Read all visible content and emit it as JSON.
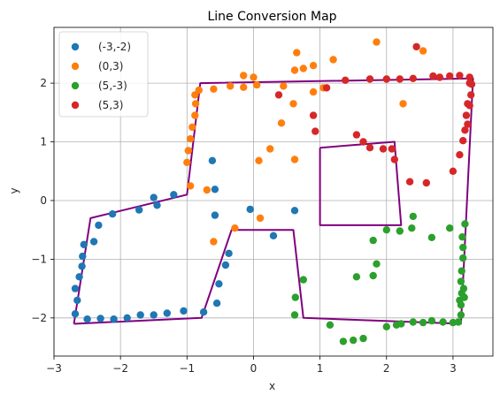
{
  "chart_data": {
    "type": "scatter",
    "title": "Line Conversion Map",
    "xlabel": "x",
    "ylabel": "y",
    "xlim": [
      -3,
      3.6
    ],
    "ylim": [
      -2.65,
      2.95
    ],
    "xticks": [
      -3,
      -2,
      -1,
      0,
      1,
      2,
      3
    ],
    "yticks": [
      -2,
      -1,
      0,
      1,
      2
    ],
    "grid": true,
    "legend_position": "top-left",
    "series": [
      {
        "name": "(-3,-2)",
        "color": "#1f77b4",
        "points": [
          [
            -2.68,
            -1.93
          ],
          [
            -2.5,
            -2.02
          ],
          [
            -2.3,
            -2.01
          ],
          [
            -2.1,
            -2.02
          ],
          [
            -1.9,
            -2.0
          ],
          [
            -1.7,
            -1.95
          ],
          [
            -1.5,
            -1.95
          ],
          [
            -1.3,
            -1.92
          ],
          [
            -1.05,
            -1.88
          ],
          [
            -0.75,
            -1.9
          ],
          [
            -2.65,
            -1.7
          ],
          [
            -2.68,
            -1.5
          ],
          [
            -2.62,
            -1.3
          ],
          [
            -2.58,
            -1.12
          ],
          [
            -2.57,
            -0.95
          ],
          [
            -2.55,
            -0.75
          ],
          [
            -2.4,
            -0.7
          ],
          [
            -2.33,
            -0.42
          ],
          [
            -2.12,
            -0.23
          ],
          [
            -1.72,
            -0.16
          ],
          [
            -1.5,
            0.05
          ],
          [
            -1.45,
            -0.08
          ],
          [
            -1.2,
            0.1
          ],
          [
            -0.62,
            0.68
          ],
          [
            -0.58,
            0.19
          ],
          [
            -0.58,
            -0.25
          ],
          [
            -0.52,
            -1.42
          ],
          [
            -0.55,
            -1.75
          ],
          [
            -0.42,
            -1.1
          ],
          [
            -0.37,
            -0.9
          ],
          [
            -0.05,
            -0.15
          ],
          [
            0.3,
            -0.6
          ],
          [
            0.62,
            -0.17
          ]
        ]
      },
      {
        "name": "(0,3)",
        "color": "#ff7f0e",
        "points": [
          [
            -0.95,
            0.25
          ],
          [
            -0.7,
            0.18
          ],
          [
            -0.6,
            -0.7
          ],
          [
            -0.28,
            -0.47
          ],
          [
            0.1,
            -0.3
          ],
          [
            0.08,
            0.68
          ],
          [
            0.25,
            0.88
          ],
          [
            -1.0,
            0.65
          ],
          [
            -0.98,
            0.85
          ],
          [
            -0.95,
            1.05
          ],
          [
            -0.92,
            1.25
          ],
          [
            -0.88,
            1.45
          ],
          [
            -0.87,
            1.65
          ],
          [
            -0.88,
            1.8
          ],
          [
            -0.82,
            1.88
          ],
          [
            -0.6,
            1.9
          ],
          [
            -0.35,
            1.95
          ],
          [
            -0.15,
            1.93
          ],
          [
            0.05,
            1.97
          ],
          [
            -0.15,
            2.13
          ],
          [
            0.0,
            2.1
          ],
          [
            0.42,
            1.32
          ],
          [
            0.45,
            1.95
          ],
          [
            0.6,
            1.65
          ],
          [
            0.62,
            2.22
          ],
          [
            0.65,
            2.52
          ],
          [
            0.75,
            2.25
          ],
          [
            0.9,
            2.3
          ],
          [
            0.9,
            1.85
          ],
          [
            1.2,
            2.4
          ],
          [
            1.05,
            1.92
          ],
          [
            1.85,
            2.7
          ],
          [
            2.25,
            1.65
          ],
          [
            2.55,
            2.55
          ],
          [
            0.62,
            0.7
          ]
        ]
      },
      {
        "name": "(5,-3)",
        "color": "#2ca02c",
        "points": [
          [
            0.63,
            -1.65
          ],
          [
            0.75,
            -1.35
          ],
          [
            0.62,
            -1.95
          ],
          [
            1.15,
            -2.12
          ],
          [
            1.35,
            -2.4
          ],
          [
            1.5,
            -2.38
          ],
          [
            1.65,
            -2.35
          ],
          [
            1.55,
            -1.3
          ],
          [
            1.8,
            -1.28
          ],
          [
            1.85,
            -1.08
          ],
          [
            1.8,
            -0.68
          ],
          [
            2.0,
            -0.5
          ],
          [
            2.0,
            -2.15
          ],
          [
            2.15,
            -2.12
          ],
          [
            2.22,
            -2.1
          ],
          [
            2.2,
            -0.52
          ],
          [
            2.38,
            -0.47
          ],
          [
            2.4,
            -0.27
          ],
          [
            2.4,
            -2.07
          ],
          [
            2.55,
            -2.08
          ],
          [
            2.68,
            -2.05
          ],
          [
            2.68,
            -0.63
          ],
          [
            2.85,
            -2.07
          ],
          [
            2.95,
            -0.47
          ],
          [
            3.0,
            -2.08
          ],
          [
            3.08,
            -2.07
          ],
          [
            3.12,
            -1.95
          ],
          [
            3.12,
            -1.78
          ],
          [
            3.13,
            -1.58
          ],
          [
            3.12,
            -1.38
          ],
          [
            3.13,
            -1.2
          ],
          [
            3.15,
            -0.98
          ],
          [
            3.15,
            -0.8
          ],
          [
            3.14,
            -0.62
          ],
          [
            3.18,
            -0.4
          ],
          [
            3.17,
            -1.65
          ],
          [
            3.16,
            -1.5
          ],
          [
            3.1,
            -1.7
          ]
        ]
      },
      {
        "name": "(5,3)",
        "color": "#d62728",
        "points": [
          [
            0.38,
            1.8
          ],
          [
            0.9,
            1.45
          ],
          [
            0.93,
            1.18
          ],
          [
            1.1,
            1.92
          ],
          [
            1.38,
            2.05
          ],
          [
            1.55,
            1.12
          ],
          [
            1.65,
            1.0
          ],
          [
            1.75,
            0.9
          ],
          [
            1.95,
            0.88
          ],
          [
            2.08,
            0.88
          ],
          [
            2.12,
            0.7
          ],
          [
            2.2,
            2.07
          ],
          [
            2.35,
            0.32
          ],
          [
            2.45,
            2.62
          ],
          [
            2.6,
            0.3
          ],
          [
            1.75,
            2.07
          ],
          [
            2.0,
            2.07
          ],
          [
            2.4,
            2.08
          ],
          [
            2.7,
            2.12
          ],
          [
            2.8,
            2.1
          ],
          [
            2.95,
            2.12
          ],
          [
            3.1,
            2.13
          ],
          [
            3.25,
            2.1
          ],
          [
            3.28,
            1.98
          ],
          [
            3.27,
            1.8
          ],
          [
            3.25,
            1.62
          ],
          [
            3.2,
            1.45
          ],
          [
            3.22,
            1.3
          ],
          [
            3.18,
            1.2
          ],
          [
            3.15,
            1.02
          ],
          [
            3.1,
            0.78
          ],
          [
            3.0,
            0.5
          ],
          [
            3.25,
            2.0
          ],
          [
            3.22,
            1.65
          ]
        ]
      }
    ],
    "lines": {
      "color": "#800080",
      "polylines": [
        [
          [
            -2.7,
            -2.1
          ],
          [
            -0.78,
            -2.0
          ],
          [
            -0.33,
            -0.5
          ],
          [
            0.6,
            -0.5
          ],
          [
            0.75,
            -2.0
          ],
          [
            3.12,
            -2.1
          ],
          [
            3.3,
            2.08
          ],
          [
            -0.8,
            2.0
          ],
          [
            -1.0,
            0.1
          ],
          [
            -2.45,
            -0.3
          ],
          [
            -2.7,
            -2.1
          ]
        ],
        [
          [
            1.0,
            0.9
          ],
          [
            2.12,
            1.0
          ],
          [
            2.22,
            -0.42
          ],
          [
            1.0,
            -0.42
          ],
          [
            1.0,
            0.9
          ]
        ]
      ]
    }
  }
}
